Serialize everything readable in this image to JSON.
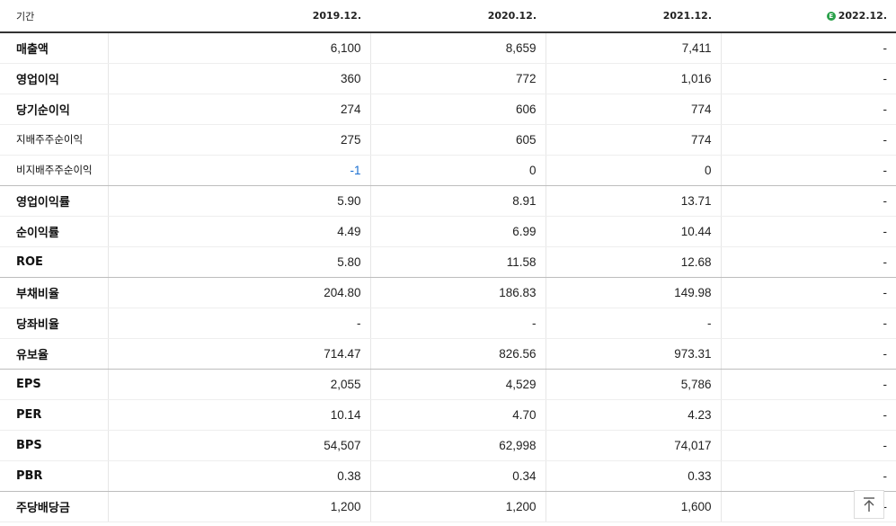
{
  "header": {
    "label": "기간",
    "years": [
      "2019.12.",
      "2020.12.",
      "2021.12.",
      "2022.12."
    ],
    "estimate_mark": "E"
  },
  "rows": [
    {
      "label": "매출액",
      "values": [
        "6,100",
        "8,659",
        "7,411",
        "-"
      ]
    },
    {
      "label": "영업이익",
      "values": [
        "360",
        "772",
        "1,016",
        "-"
      ]
    },
    {
      "label": "당기순이익",
      "values": [
        "274",
        "606",
        "774",
        "-"
      ]
    },
    {
      "label": "지배주주순이익",
      "values": [
        "275",
        "605",
        "774",
        "-"
      ]
    },
    {
      "label": "비지배주주순이익",
      "values": [
        "-1",
        "0",
        "0",
        "-"
      ]
    },
    {
      "label": "영업이익률",
      "values": [
        "5.90",
        "8.91",
        "13.71",
        "-"
      ]
    },
    {
      "label": "순이익률",
      "values": [
        "4.49",
        "6.99",
        "10.44",
        "-"
      ]
    },
    {
      "label": "ROE",
      "values": [
        "5.80",
        "11.58",
        "12.68",
        "-"
      ]
    },
    {
      "label": "부채비율",
      "values": [
        "204.80",
        "186.83",
        "149.98",
        "-"
      ]
    },
    {
      "label": "당좌비율",
      "values": [
        "-",
        "-",
        "-",
        "-"
      ]
    },
    {
      "label": "유보율",
      "values": [
        "714.47",
        "826.56",
        "973.31",
        "-"
      ]
    },
    {
      "label": "EPS",
      "values": [
        "2,055",
        "4,529",
        "5,786",
        "-"
      ]
    },
    {
      "label": "PER",
      "values": [
        "10.14",
        "4.70",
        "4.23",
        "-"
      ]
    },
    {
      "label": "BPS",
      "values": [
        "54,507",
        "62,998",
        "74,017",
        "-"
      ]
    },
    {
      "label": "PBR",
      "values": [
        "0.38",
        "0.34",
        "0.33",
        "-"
      ]
    },
    {
      "label": "주당배당금",
      "values": [
        "1,200",
        "1,200",
        "1,600",
        "-"
      ]
    }
  ],
  "colors": {
    "negative": "#1a6fd1",
    "estimate": "#2aa14a"
  },
  "top_button": {
    "icon": "arrow-up-to-top-icon"
  }
}
